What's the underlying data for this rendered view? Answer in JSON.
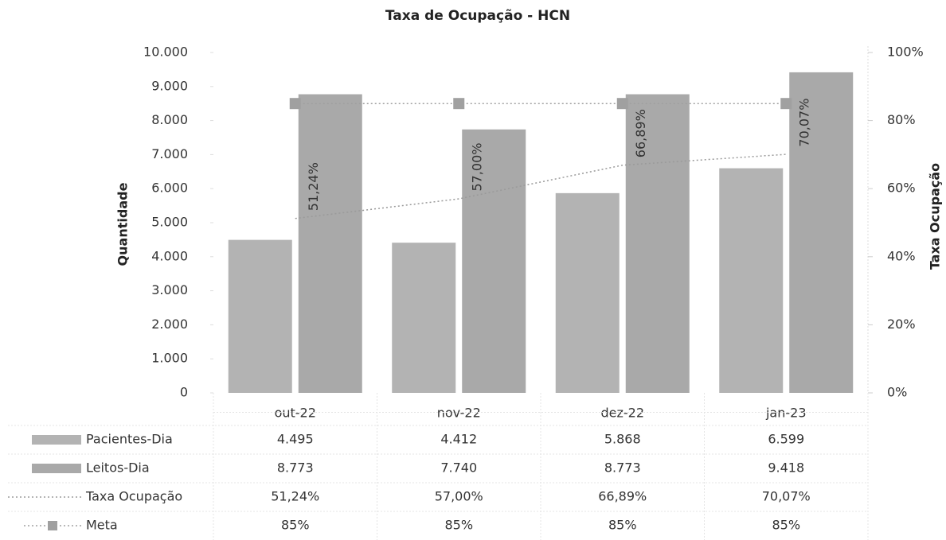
{
  "chart_data": {
    "type": "bar",
    "title": "Taxa de Ocupação - HCN",
    "y_label": "Quantidade",
    "y2_label": "Taxa Ocupação",
    "categories": [
      "out-22",
      "nov-22",
      "dez-22",
      "jan-23"
    ],
    "series": [
      {
        "name": "Pacientes-Dia",
        "type": "bar",
        "color": "#b3b3b3",
        "values": [
          4495,
          4412,
          5868,
          6599
        ],
        "value_labels": [
          "4.495",
          "4.412",
          "5.868",
          "6.599"
        ]
      },
      {
        "name": "Leitos-Dia",
        "type": "bar",
        "color": "#a9a9a9",
        "values": [
          8773,
          7740,
          8773,
          9418
        ],
        "value_labels": [
          "8.773",
          "7.740",
          "8.773",
          "9.418"
        ]
      },
      {
        "name": "Taxa Ocupação",
        "type": "line",
        "axis": "y2",
        "color": "#9a9a9a",
        "values": [
          51.24,
          57.0,
          66.89,
          70.07
        ],
        "value_labels": [
          "51,24%",
          "57,00%",
          "66,89%",
          "70,07%"
        ],
        "data_labels": true
      },
      {
        "name": "Meta",
        "type": "line",
        "axis": "y2",
        "marker": "square",
        "color": "#a0a0a0",
        "values": [
          85,
          85,
          85,
          85
        ],
        "value_labels": [
          "85%",
          "85%",
          "85%",
          "85%"
        ]
      }
    ],
    "ylim": [
      0,
      10000
    ],
    "yticks": [
      0,
      {
        "value": 1000,
        "label": "1.000"
      },
      {
        "value": 2000,
        "label": "2.000"
      },
      {
        "value": 3000,
        "label": "3.000"
      },
      {
        "value": 4000,
        "label": "4.000"
      },
      {
        "value": 5000,
        "label": "5.000"
      },
      {
        "value": 6000,
        "label": "6.000"
      },
      {
        "value": 7000,
        "label": "7.000"
      },
      {
        "value": 8000,
        "label": "8.000"
      },
      {
        "value": 9000,
        "label": "9.000"
      },
      {
        "value": 10000,
        "label": "10.000"
      }
    ],
    "y2lim": [
      0,
      100
    ],
    "y2ticks": [
      {
        "value": 0,
        "label": "0%"
      },
      {
        "value": 20,
        "label": "20%"
      },
      {
        "value": 40,
        "label": "40%"
      },
      {
        "value": 60,
        "label": "60%"
      },
      {
        "value": 80,
        "label": "80%"
      },
      {
        "value": 100,
        "label": "100%"
      }
    ],
    "grid": false,
    "legend": "table"
  }
}
